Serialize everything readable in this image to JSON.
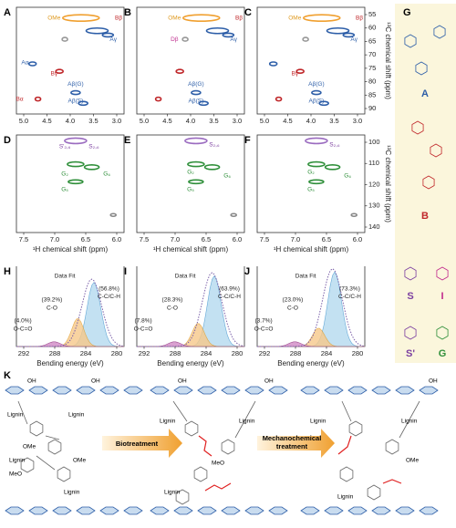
{
  "rows": [
    {
      "panels": [
        {
          "label": "A",
          "annotations": [
            "OMe",
            "Bβ",
            "Aγ",
            "Aα",
            "Bγ",
            "Bα",
            "Aβ(G)",
            "Aβ(S)"
          ]
        },
        {
          "label": "B",
          "annotations": [
            "OMe",
            "Bβ",
            "Dβ",
            "Aγ",
            "Aβ(G)",
            "Aβ(S)"
          ]
        },
        {
          "label": "C",
          "annotations": [
            "OMe",
            "Bβ",
            "Aγ",
            "Bγ",
            "Aβ(G)",
            "Aβ(S)"
          ]
        }
      ],
      "x_ticks": [
        "5.0",
        "4.5",
        "4.0",
        "3.5",
        "3.0"
      ],
      "y_ticks": [
        "55",
        "60",
        "65",
        "70",
        "75",
        "80",
        "85",
        "90"
      ],
      "y_axis_label": "¹³C chemical shift (ppm)"
    },
    {
      "panels": [
        {
          "label": "D",
          "annotations": [
            "S'₂,₆",
            "S₂,₆",
            "G₂",
            "G₆",
            "G₅"
          ]
        },
        {
          "label": "E",
          "annotations": [
            "S₂,₆",
            "G₂",
            "G₆",
            "G₅"
          ]
        },
        {
          "label": "F",
          "annotations": [
            "S₂,₆",
            "G₂",
            "G₆",
            "G₅"
          ]
        }
      ],
      "x_ticks": [
        "7.5",
        "7.0",
        "6.5",
        "6.0"
      ],
      "y_ticks": [
        "100",
        "110",
        "120",
        "130",
        "140"
      ],
      "x_axis_label": "¹H chemical shift (ppm)",
      "y_axis_label": "¹³C chemical shift (ppm)"
    },
    {
      "panels": [
        {
          "label": "H",
          "annotations": [
            "Data Fit",
            "(56.8%)",
            "C-C/C-H",
            "(39.2%)",
            "C-O",
            "(4.0%)",
            "O-C=O"
          ]
        },
        {
          "label": "I",
          "annotations": [
            "Data Fit",
            "(63.9%)",
            "C-C/C-H",
            "(28.3%)",
            "C-O",
            "(7.8%)",
            "O-C=O"
          ]
        },
        {
          "label": "J",
          "annotations": [
            "Data Fit",
            "(73.3%)",
            "C-C/C-H",
            "(23.0%)",
            "C-O",
            "(3.7%)",
            "O-C=O"
          ]
        }
      ],
      "x_ticks": [
        "292",
        "288",
        "284",
        "280"
      ],
      "x_axis_label": "Bending energy (eV)"
    }
  ],
  "structures": {
    "label": "G",
    "names": [
      "A",
      "B",
      "S",
      "I",
      "S'",
      "G"
    ]
  },
  "scheme": {
    "label": "K",
    "arrow_labels": [
      [
        "Biotreatment"
      ],
      [
        "Mechanochemical",
        "treatment"
      ]
    ],
    "lignin_labels": [
      "Lignin",
      "Lignin",
      "Lignin",
      "Lignin",
      "Lignin",
      "Lignin",
      "Lignin",
      "Lignin",
      "Lignin",
      "Lignin"
    ],
    "groups": [
      "OH",
      "OH",
      "OH",
      "OMe",
      "MeO",
      "OMe",
      "MeO",
      "OH",
      "OH",
      "OMe"
    ]
  }
}
